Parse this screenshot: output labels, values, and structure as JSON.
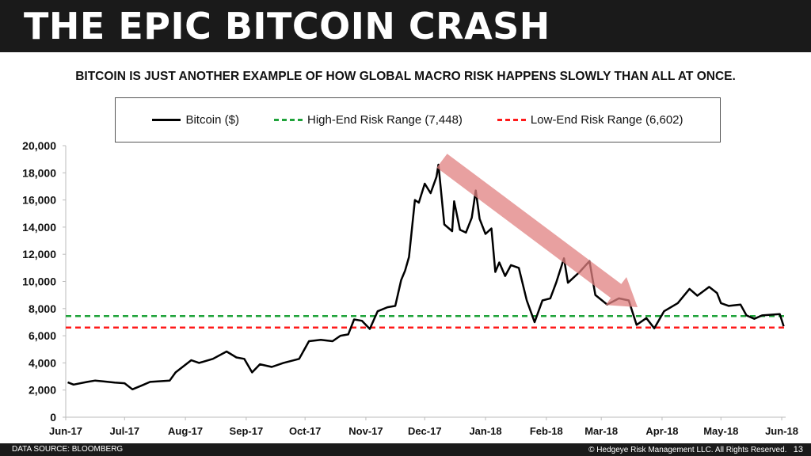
{
  "header": {
    "title": "THE EPIC BITCOIN CRASH"
  },
  "subtitle": "BITCOIN IS JUST ANOTHER EXAMPLE OF HOW GLOBAL MACRO RISK HAPPENS SLOWLY THAN ALL AT ONCE.",
  "footer": {
    "source": "DATA SOURCE: BLOOMBERG",
    "copyright": "© Hedgeye Risk Management LLC. All Rights Reserved.",
    "page": "13"
  },
  "chart_data": {
    "type": "line",
    "title": "",
    "xlabel": "",
    "ylabel": "",
    "ylim": [
      0,
      20000
    ],
    "xlim": [
      "2017-06-01",
      "2018-06-03"
    ],
    "yticks": [
      0,
      2000,
      4000,
      6000,
      8000,
      10000,
      12000,
      14000,
      16000,
      18000,
      20000
    ],
    "ytick_labels": [
      "0",
      "2,000",
      "4,000",
      "6,000",
      "8,000",
      "10,000",
      "12,000",
      "14,000",
      "16,000",
      "18,000",
      "20,000"
    ],
    "xticks": [
      "2017-06-01",
      "2017-07-01",
      "2017-08-01",
      "2017-09-01",
      "2017-10-01",
      "2017-11-01",
      "2017-12-01",
      "2018-01-01",
      "2018-02-01",
      "2018-03-01",
      "2018-04-01",
      "2018-05-01",
      "2018-06-01"
    ],
    "xtick_labels": [
      "Jun-17",
      "Jul-17",
      "Aug-17",
      "Sep-17",
      "Oct-17",
      "Nov-17",
      "Dec-17",
      "Jan-18",
      "Feb-18",
      "Mar-18",
      "Apr-18",
      "May-18",
      "Jun-18"
    ],
    "grid": false,
    "legend_position": "top",
    "series": [
      {
        "name": "Bitcoin ($)",
        "color": "#000000",
        "style": "solid",
        "points": [
          [
            "2017-06-02",
            2570
          ],
          [
            "2017-06-05",
            2400
          ],
          [
            "2017-06-12",
            2600
          ],
          [
            "2017-06-16",
            2700
          ],
          [
            "2017-06-26",
            2550
          ],
          [
            "2017-07-01",
            2500
          ],
          [
            "2017-07-05",
            2050
          ],
          [
            "2017-07-10",
            2350
          ],
          [
            "2017-07-14",
            2600
          ],
          [
            "2017-07-24",
            2700
          ],
          [
            "2017-07-27",
            3300
          ],
          [
            "2017-08-04",
            4200
          ],
          [
            "2017-08-08",
            4000
          ],
          [
            "2017-08-15",
            4300
          ],
          [
            "2017-08-22",
            4840
          ],
          [
            "2017-08-27",
            4400
          ],
          [
            "2017-08-31",
            4300
          ],
          [
            "2017-09-04",
            3300
          ],
          [
            "2017-09-08",
            3900
          ],
          [
            "2017-09-14",
            3700
          ],
          [
            "2017-09-20",
            4000
          ],
          [
            "2017-09-28",
            4300
          ],
          [
            "2017-10-03",
            5600
          ],
          [
            "2017-10-09",
            5700
          ],
          [
            "2017-10-15",
            5600
          ],
          [
            "2017-10-19",
            6000
          ],
          [
            "2017-10-23",
            6100
          ],
          [
            "2017-10-26",
            7200
          ],
          [
            "2017-10-30",
            7100
          ],
          [
            "2017-11-03",
            6500
          ],
          [
            "2017-11-07",
            7800
          ],
          [
            "2017-11-12",
            8100
          ],
          [
            "2017-11-16",
            8200
          ],
          [
            "2017-11-19",
            10100
          ],
          [
            "2017-11-21",
            10800
          ],
          [
            "2017-11-23",
            11800
          ],
          [
            "2017-11-26",
            16000
          ],
          [
            "2017-11-28",
            15800
          ],
          [
            "2017-12-01",
            17200
          ],
          [
            "2017-12-04",
            16500
          ],
          [
            "2017-12-07",
            17700
          ],
          [
            "2017-12-08",
            18600
          ],
          [
            "2017-12-11",
            14200
          ],
          [
            "2017-12-15",
            13700
          ],
          [
            "2017-12-16",
            15900
          ],
          [
            "2017-12-19",
            13800
          ],
          [
            "2017-12-22",
            13600
          ],
          [
            "2017-12-25",
            14700
          ],
          [
            "2017-12-27",
            16700
          ],
          [
            "2017-12-29",
            14600
          ],
          [
            "2018-01-01",
            13500
          ],
          [
            "2018-01-04",
            13900
          ],
          [
            "2018-01-06",
            10700
          ],
          [
            "2018-01-08",
            11400
          ],
          [
            "2018-01-11",
            10400
          ],
          [
            "2018-01-14",
            11200
          ],
          [
            "2018-01-18",
            11000
          ],
          [
            "2018-01-22",
            8600
          ],
          [
            "2018-01-26",
            7000
          ],
          [
            "2018-01-30",
            8600
          ],
          [
            "2018-02-03",
            8750
          ],
          [
            "2018-02-06",
            9900
          ],
          [
            "2018-02-10",
            11700
          ],
          [
            "2018-02-12",
            9900
          ],
          [
            "2018-02-18",
            10700
          ],
          [
            "2018-02-23",
            11500
          ],
          [
            "2018-02-26",
            9000
          ],
          [
            "2018-03-04",
            8300
          ],
          [
            "2018-03-10",
            8750
          ],
          [
            "2018-03-15",
            8600
          ],
          [
            "2018-03-19",
            6800
          ],
          [
            "2018-03-24",
            7300
          ],
          [
            "2018-03-28",
            6550
          ],
          [
            "2018-04-02",
            7800
          ],
          [
            "2018-04-09",
            8400
          ],
          [
            "2018-04-15",
            9450
          ],
          [
            "2018-04-19",
            8950
          ],
          [
            "2018-04-25",
            9600
          ],
          [
            "2018-04-29",
            9150
          ],
          [
            "2018-05-01",
            8400
          ],
          [
            "2018-05-05",
            8200
          ],
          [
            "2018-05-11",
            8300
          ],
          [
            "2018-05-14",
            7500
          ],
          [
            "2018-05-18",
            7250
          ],
          [
            "2018-05-22",
            7500
          ],
          [
            "2018-05-31",
            7600
          ],
          [
            "2018-06-02",
            6700
          ]
        ]
      },
      {
        "name": "High-End Risk Range (7,448)",
        "color": "#1fa33a",
        "style": "dashed",
        "value": 7448
      },
      {
        "name": "Low-End Risk Range (6,602)",
        "color": "#ff1a1a",
        "style": "dashed",
        "value": 6602
      }
    ],
    "annotation": {
      "type": "down-arrow",
      "color": "#e08080"
    }
  }
}
